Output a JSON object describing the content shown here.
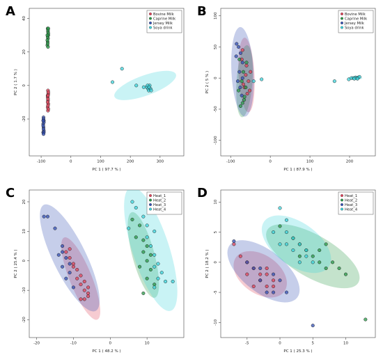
{
  "chart_data": [
    {
      "panel": "A",
      "type": "scatter",
      "xlabel": "PC 1 ( 97.7 % )",
      "ylabel": "PC 2 ( 1.7 % )",
      "xlim": [
        -140,
        380
      ],
      "ylim": [
        -42,
        46
      ],
      "xticks": [
        -100,
        0,
        100,
        200,
        300
      ],
      "yticks": [
        -20,
        0,
        20,
        40
      ],
      "legend_position": "top-right",
      "series": [
        {
          "name": "Bovine Milk",
          "color": "#e0435a",
          "points": [
            [
              -77,
              -3
            ],
            [
              -76,
              -5
            ],
            [
              -78,
              -7
            ],
            [
              -77,
              -9
            ],
            [
              -76,
              -11
            ],
            [
              -78,
              -13
            ],
            [
              -77,
              -15
            ],
            [
              -76,
              -4
            ],
            [
              -78,
              -6
            ],
            [
              -77,
              -8
            ],
            [
              -78,
              -10
            ],
            [
              -77,
              -12
            ],
            [
              -76,
              -14
            ],
            [
              -77,
              -6
            ]
          ],
          "ellipse": null
        },
        {
          "name": "Caprine Milk",
          "color": "#2a9a48",
          "points": [
            [
              -79,
              24
            ],
            [
              -78,
              26
            ],
            [
              -77,
              28
            ],
            [
              -76,
              30
            ],
            [
              -77,
              32
            ],
            [
              -78,
              34
            ],
            [
              -79,
              27
            ],
            [
              -78,
              29
            ],
            [
              -76,
              31
            ],
            [
              -77,
              33
            ],
            [
              -78,
              25
            ],
            [
              -77,
              23
            ],
            [
              -79,
              30
            ],
            [
              -76,
              34
            ]
          ],
          "ellipse": null
        },
        {
          "name": "Jersey Milk",
          "color": "#3450b4",
          "points": [
            [
              -92,
              -19
            ],
            [
              -91,
              -21
            ],
            [
              -93,
              -23
            ],
            [
              -92,
              -25
            ],
            [
              -91,
              -27
            ],
            [
              -93,
              -28
            ],
            [
              -92,
              -20
            ],
            [
              -91,
              -22
            ],
            [
              -93,
              -24
            ],
            [
              -92,
              -26
            ],
            [
              -91,
              -28
            ],
            [
              -92,
              -29
            ],
            [
              -93,
              -21
            ]
          ],
          "ellipse": null
        },
        {
          "name": "Soya drink",
          "color": "#3cd4dc",
          "points": [
            [
              140,
              2
            ],
            [
              172,
              10
            ],
            [
              220,
              0
            ],
            [
              245,
              -1
            ],
            [
              255,
              -1
            ],
            [
              260,
              -2
            ],
            [
              262,
              -3
            ],
            [
              265,
              0
            ],
            [
              268,
              -2
            ],
            [
              258,
              0
            ],
            [
              263,
              -1
            ],
            [
              270,
              -3
            ]
          ],
          "ellipse": {
            "cx": 250,
            "cy": 0,
            "rx": 110,
            "ry": 6,
            "angle": -20
          }
        }
      ]
    },
    {
      "panel": "B",
      "type": "scatter",
      "xlabel": "PC 1 ( 87.9 % )",
      "ylabel": "PC 2 ( 5 % )",
      "xlim": [
        -125,
        265
      ],
      "ylim": [
        -125,
        112
      ],
      "xticks": [
        -100,
        0,
        100,
        200
      ],
      "yticks": [
        -100,
        -50,
        0,
        50,
        100
      ],
      "legend_position": "top-right",
      "series": [
        {
          "name": "Bovine Milk",
          "color": "#e0435a",
          "points": [
            [
              -70,
              45
            ],
            [
              -60,
              20
            ],
            [
              -55,
              -5
            ],
            [
              -65,
              -15
            ],
            [
              -50,
              10
            ],
            [
              -72,
              30
            ],
            [
              -58,
              -25
            ],
            [
              -62,
              5
            ],
            [
              -68,
              -10
            ],
            [
              -52,
              -20
            ]
          ],
          "ellipse": {
            "cx": -60,
            "cy": 5,
            "rx": 20,
            "ry": 60,
            "angle": -3
          }
        },
        {
          "name": "Caprine Milk",
          "color": "#2a9a48",
          "points": [
            [
              -75,
              -45
            ],
            [
              -70,
              -40
            ],
            [
              -65,
              -30
            ],
            [
              -62,
              -15
            ],
            [
              -72,
              -5
            ],
            [
              -78,
              30
            ],
            [
              -60,
              25
            ],
            [
              -68,
              10
            ],
            [
              -80,
              -20
            ],
            [
              -66,
              -35
            ]
          ],
          "ellipse": {
            "cx": -65,
            "cy": -5,
            "rx": 20,
            "ry": 58,
            "angle": 4
          }
        },
        {
          "name": "Jersey Milk",
          "color": "#3450b4",
          "points": [
            [
              -85,
              55
            ],
            [
              -80,
              50
            ],
            [
              -75,
              40
            ],
            [
              -70,
              25
            ],
            [
              -78,
              10
            ],
            [
              -82,
              -5
            ],
            [
              -76,
              -15
            ],
            [
              -72,
              -28
            ],
            [
              -86,
              35
            ],
            [
              -70,
              0
            ]
          ],
          "ellipse": {
            "cx": -70,
            "cy": 10,
            "rx": 28,
            "ry": 72,
            "angle": -3
          }
        },
        {
          "name": "Soya drink",
          "color": "#3cd4dc",
          "points": [
            [
              -42,
              -5
            ],
            [
              -22,
              -2
            ],
            [
              162,
              -5
            ],
            [
              198,
              -2
            ],
            [
              205,
              0
            ],
            [
              210,
              0
            ],
            [
              215,
              1
            ],
            [
              218,
              0
            ],
            [
              222,
              1
            ],
            [
              225,
              2
            ],
            [
              212,
              -1
            ],
            [
              220,
              -1
            ]
          ],
          "ellipse": {
            "cx": 214,
            "cy": 0,
            "rx": 18,
            "ry": 3,
            "angle": 0
          }
        }
      ]
    },
    {
      "panel": "C",
      "type": "scatter",
      "xlabel": "PC 1 ( 48.2 % )",
      "ylabel": "PC 2 ( 25.4 % )",
      "xlim": [
        -22,
        20
      ],
      "ylim": [
        -26,
        24
      ],
      "xticks": [
        -20,
        -10,
        0,
        10
      ],
      "yticks": [
        -20,
        -10,
        0,
        10,
        20
      ],
      "legend_position": "top-right",
      "series": [
        {
          "name": "Heat_1",
          "color": "#e0435a",
          "points": [
            [
              -11,
              4
            ],
            [
              -11,
              1
            ],
            [
              -10,
              -1
            ],
            [
              -9,
              -3
            ],
            [
              -8,
              -5
            ],
            [
              -9,
              -6
            ],
            [
              -7,
              -7
            ],
            [
              -6,
              -9
            ],
            [
              -7,
              -10
            ],
            [
              -6,
              -12
            ],
            [
              -7,
              -13
            ],
            [
              -8,
              -13
            ],
            [
              -6,
              -11
            ],
            [
              -10,
              -2
            ],
            [
              -12,
              3
            ],
            [
              -8,
              -8
            ]
          ],
          "ellipse": {
            "cx": -8,
            "cy": -6,
            "rx": 3,
            "ry": 15,
            "angle": -22
          }
        },
        {
          "name": "Heat_2",
          "color": "#2a9a48",
          "points": [
            [
              6,
              14
            ],
            [
              8,
              12
            ],
            [
              9,
              7
            ],
            [
              10,
              5
            ],
            [
              9,
              3
            ],
            [
              10,
              0
            ],
            [
              11,
              -3
            ],
            [
              10,
              -6
            ],
            [
              9,
              -11
            ],
            [
              12,
              -8
            ],
            [
              8,
              -2
            ],
            [
              11,
              2
            ],
            [
              7,
              8
            ]
          ],
          "ellipse": {
            "cx": 9,
            "cy": 2,
            "rx": 3,
            "ry": 15,
            "angle": -15
          }
        },
        {
          "name": "Heat_3",
          "color": "#3450b4",
          "points": [
            [
              -17,
              15
            ],
            [
              -18,
              15
            ],
            [
              -15,
              11
            ],
            [
              -13,
              5
            ],
            [
              -14,
              2
            ],
            [
              -12,
              1
            ],
            [
              -13,
              -2
            ],
            [
              -11,
              -4
            ],
            [
              -12,
              -6
            ],
            [
              -10,
              -9
            ],
            [
              -11,
              -1
            ],
            [
              -13,
              3
            ]
          ],
          "ellipse": {
            "cx": -11,
            "cy": 1,
            "rx": 4.5,
            "ry": 20,
            "angle": -26
          }
        },
        {
          "name": "Heat_4",
          "color": "#3cd4dc",
          "points": [
            [
              6,
              20
            ],
            [
              7,
              18
            ],
            [
              9,
              15
            ],
            [
              10,
              12
            ],
            [
              12,
              10
            ],
            [
              11,
              5
            ],
            [
              12,
              2
            ],
            [
              13,
              -1
            ],
            [
              14,
              -4
            ],
            [
              13,
              -6
            ],
            [
              12,
              -9
            ],
            [
              15,
              -7
            ],
            [
              17,
              -7
            ],
            [
              5,
              11
            ],
            [
              10,
              8
            ],
            [
              12,
              -2
            ]
          ],
          "ellipse": {
            "cx": 11,
            "cy": 4,
            "rx": 5,
            "ry": 22,
            "angle": -18
          }
        }
      ]
    },
    {
      "panel": "D",
      "type": "scatter",
      "xlabel": "PC 1 ( 25.3 % )",
      "ylabel": "PC 2 ( 18.2 % )",
      "xlim": [
        -9,
        14.5
      ],
      "ylim": [
        -12.5,
        12
      ],
      "xticks": [
        -5,
        0,
        5,
        10
      ],
      "yticks": [
        -10,
        -5,
        0,
        5,
        10
      ],
      "legend_position": "top-right",
      "series": [
        {
          "name": "Heat_1",
          "color": "#e0435a",
          "points": [
            [
              -7,
              3
            ],
            [
              -6,
              1
            ],
            [
              -5,
              0
            ],
            [
              -4,
              -1
            ],
            [
              -3,
              -2
            ],
            [
              -2,
              -2
            ],
            [
              -1,
              -3
            ],
            [
              -2,
              -1
            ],
            [
              -3,
              -3
            ],
            [
              -4,
              -4
            ],
            [
              -1,
              -4
            ],
            [
              -5,
              -2
            ],
            [
              -2,
              -4
            ]
          ],
          "ellipse": {
            "cx": -3,
            "cy": -2,
            "rx": 4.5,
            "ry": 3.2,
            "angle": 35
          }
        },
        {
          "name": "Heat_2",
          "color": "#2a9a48",
          "points": [
            [
              0,
              6
            ],
            [
              2,
              4
            ],
            [
              3,
              3
            ],
            [
              4,
              2
            ],
            [
              5,
              1
            ],
            [
              6,
              0
            ],
            [
              7,
              -1
            ],
            [
              8,
              0
            ],
            [
              9,
              -1
            ],
            [
              10,
              -2
            ],
            [
              6,
              2
            ],
            [
              7,
              3
            ],
            [
              3,
              1
            ],
            [
              13,
              -9.5
            ]
          ],
          "ellipse": {
            "cx": 5,
            "cy": 1,
            "rx": 8,
            "ry": 3.5,
            "angle": 30
          }
        },
        {
          "name": "Heat_3",
          "color": "#3450b4",
          "points": [
            [
              -7,
              3.5
            ],
            [
              -5,
              0
            ],
            [
              -4,
              -1
            ],
            [
              -3,
              -3
            ],
            [
              -2,
              -5
            ],
            [
              -1,
              -5
            ],
            [
              0,
              -3
            ],
            [
              1,
              -5
            ],
            [
              5,
              -10.5
            ],
            [
              -3,
              -1
            ],
            [
              -1,
              -2
            ]
          ],
          "ellipse": {
            "cx": -2.5,
            "cy": -1.5,
            "rx": 6.5,
            "ry": 3.5,
            "angle": 38
          }
        },
        {
          "name": "Heat_4",
          "color": "#3cd4dc",
          "points": [
            [
              0,
              9
            ],
            [
              1,
              7
            ],
            [
              1,
              5
            ],
            [
              2,
              4
            ],
            [
              3,
              3
            ],
            [
              4,
              2
            ],
            [
              4,
              1
            ],
            [
              5,
              0
            ],
            [
              2,
              2
            ],
            [
              1,
              3
            ],
            [
              3,
              0
            ],
            [
              -1,
              5
            ],
            [
              0,
              3
            ]
          ],
          "ellipse": {
            "cx": 2.5,
            "cy": 3,
            "rx": 6,
            "ry": 3.6,
            "angle": 35
          }
        }
      ]
    }
  ]
}
